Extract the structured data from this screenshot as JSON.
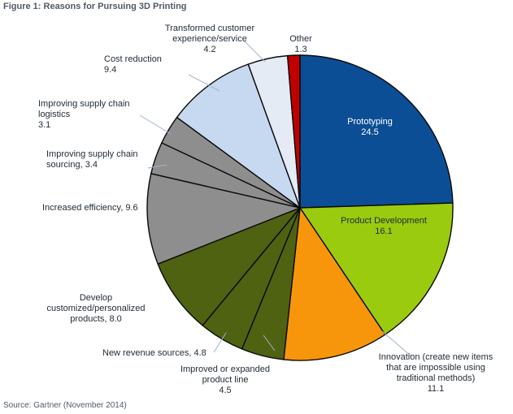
{
  "figure_title": "Figure 1: Reasons for Pursuing 3D Printing",
  "source": "Source: Gartner (November 2014)",
  "chart_data": {
    "type": "pie",
    "title": "",
    "slices": [
      {
        "name": "Prototyping",
        "value": 24.5,
        "color": "#0b4e96",
        "label_lines": [
          "Prototyping",
          "24.5"
        ],
        "label_color": "#ffffff",
        "label_inside": true
      },
      {
        "name": "Product Development",
        "value": 16.1,
        "color": "#9acb0e",
        "label_lines": [
          "Product Development",
          "16.1"
        ],
        "label_color": "#1f2a36",
        "label_inside": true
      },
      {
        "name": "Innovation (create new items that are impossible using traditional methods)",
        "value": 11.1,
        "color": "#f7960b",
        "label_lines": [
          "Innovation (create new items",
          "that are impossible using",
          "traditional methods)",
          "11.1"
        ],
        "label_color": "#1f2a36",
        "label_inside": false
      },
      {
        "name": "Improved or expanded product line",
        "value": 4.5,
        "color": "#4e6212",
        "label_lines": [
          "Improved or expanded",
          "product line",
          "4.5"
        ],
        "label_color": "#1f2a36",
        "label_inside": false
      },
      {
        "name": "New revenue sources",
        "value": 4.8,
        "color": "#4e6212",
        "label_lines": [
          "New revenue sources, 4.8"
        ],
        "label_color": "#1f2a36",
        "label_inside": false
      },
      {
        "name": "Develop customized/personalized products",
        "value": 8.0,
        "color": "#4e6212",
        "label_lines": [
          "Develop",
          "customized/personalized",
          "products, 8.0"
        ],
        "label_color": "#1f2a36",
        "label_inside": false
      },
      {
        "name": "Increased efficiency",
        "value": 9.6,
        "color": "#8e8e8e",
        "label_lines": [
          "Increased efficiency, 9.6"
        ],
        "label_color": "#1f2a36",
        "label_inside": false
      },
      {
        "name": "Improving supply chain sourcing",
        "value": 3.4,
        "color": "#8e8e8e",
        "label_lines": [
          "Improving supply chain",
          "sourcing, 3.4"
        ],
        "label_color": "#1f2a36",
        "label_inside": false
      },
      {
        "name": "Improving supply chain logistics",
        "value": 3.1,
        "color": "#8e8e8e",
        "label_lines": [
          "Improving supply chain",
          "logistics",
          "3.1"
        ],
        "label_color": "#1f2a36",
        "label_inside": false
      },
      {
        "name": "Cost reduction",
        "value": 9.4,
        "color": "#c6d9f0",
        "label_lines": [
          "Cost reduction",
          "9.4"
        ],
        "label_color": "#1f2a36",
        "label_inside": false
      },
      {
        "name": "Transformed customer experience/service",
        "value": 4.2,
        "color": "#e4ebf5",
        "label_lines": [
          "Transformed customer",
          "experience/service",
          "4.2"
        ],
        "label_color": "#1f2a36",
        "label_inside": false
      },
      {
        "name": "Other",
        "value": 1.3,
        "color": "#c00000",
        "label_lines": [
          "Other",
          "1.3"
        ],
        "label_color": "#1f2a36",
        "label_inside": false
      }
    ],
    "start_angle_deg": 0,
    "direction": "clockwise",
    "legend": "none"
  }
}
